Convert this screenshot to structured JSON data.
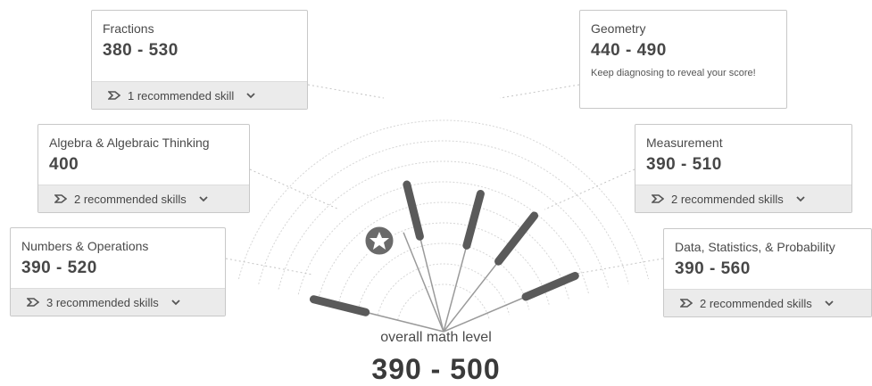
{
  "overall": {
    "label": "overall math level",
    "score": "390 - 500"
  },
  "accent_colors": {
    "bar": "#5a5a5a",
    "ring": "#d6d6d6",
    "star_fill": "#666666"
  },
  "categories": [
    {
      "title": "Fractions",
      "score": "380 - 530",
      "recommendation": "1 recommended skill",
      "note": ""
    },
    {
      "title": "Algebra & Algebraic Thinking",
      "score": "400",
      "recommendation": "2 recommended skills",
      "note": ""
    },
    {
      "title": "Numbers & Operations",
      "score": "390 - 520",
      "recommendation": "3 recommended skills",
      "note": ""
    },
    {
      "title": "Geometry",
      "score": "440 - 490",
      "recommendation": "",
      "note": "Keep diagnosing to reveal your score!"
    },
    {
      "title": "Measurement",
      "score": "390 - 510",
      "recommendation": "2 recommended skills",
      "note": ""
    },
    {
      "title": "Data, Statistics, & Probability",
      "score": "390 - 560",
      "recommendation": "2 recommended skills",
      "note": ""
    }
  ]
}
